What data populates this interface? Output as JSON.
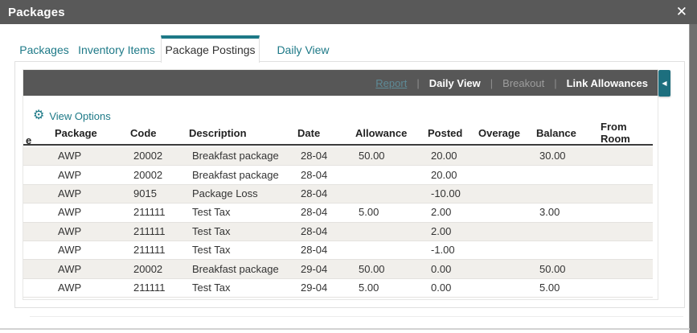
{
  "modal": {
    "title": "Packages",
    "close_icon": "✕"
  },
  "tabs": {
    "active_index": 2,
    "items": [
      {
        "label": "Packages"
      },
      {
        "label": "Inventory Items"
      },
      {
        "label": "Package Postings"
      },
      {
        "label": "Daily View"
      }
    ]
  },
  "toolbar": {
    "report": "Report",
    "daily_view": "Daily View",
    "breakout": "Breakout",
    "link_allowances": "Link Allowances",
    "separator": "|",
    "collapse_icon": "◀"
  },
  "view_options": {
    "label": "View Options",
    "gear_icon": "⚙"
  },
  "table": {
    "truncated_first_header": "e",
    "columns": [
      "Package",
      "Code",
      "Description",
      "Date",
      "Allowance",
      "Posted",
      "Overage",
      "Balance",
      "From Room"
    ],
    "rows": [
      [
        "AWP",
        "20002",
        "Breakfast package",
        "28-04",
        "50.00",
        "20.00",
        "",
        "30.00",
        ""
      ],
      [
        "AWP",
        "20002",
        "Breakfast package",
        "28-04",
        "",
        "20.00",
        "",
        "",
        ""
      ],
      [
        "AWP",
        "9015",
        "Package Loss",
        "28-04",
        "",
        "-10.00",
        "",
        "",
        ""
      ],
      [
        "AWP",
        "211111",
        "Test Tax",
        "28-04",
        "5.00",
        "2.00",
        "",
        "3.00",
        ""
      ],
      [
        "AWP",
        "211111",
        "Test Tax",
        "28-04",
        "",
        "2.00",
        "",
        "",
        ""
      ],
      [
        "AWP",
        "211111",
        "Test Tax",
        "28-04",
        "",
        "-1.00",
        "",
        "",
        ""
      ],
      [
        "AWP",
        "20002",
        "Breakfast package",
        "29-04",
        "50.00",
        "0.00",
        "",
        "50.00",
        ""
      ],
      [
        "AWP",
        "211111",
        "Test Tax",
        "29-04",
        "5.00",
        "0.00",
        "",
        "5.00",
        ""
      ]
    ]
  },
  "colors": {
    "accent_teal": "#1d7987",
    "titlebar_gray": "#595959",
    "toolbar_gray": "#575757",
    "row_stripe": "#f1efeb",
    "collapse_button_teal": "#1d6f7e"
  }
}
